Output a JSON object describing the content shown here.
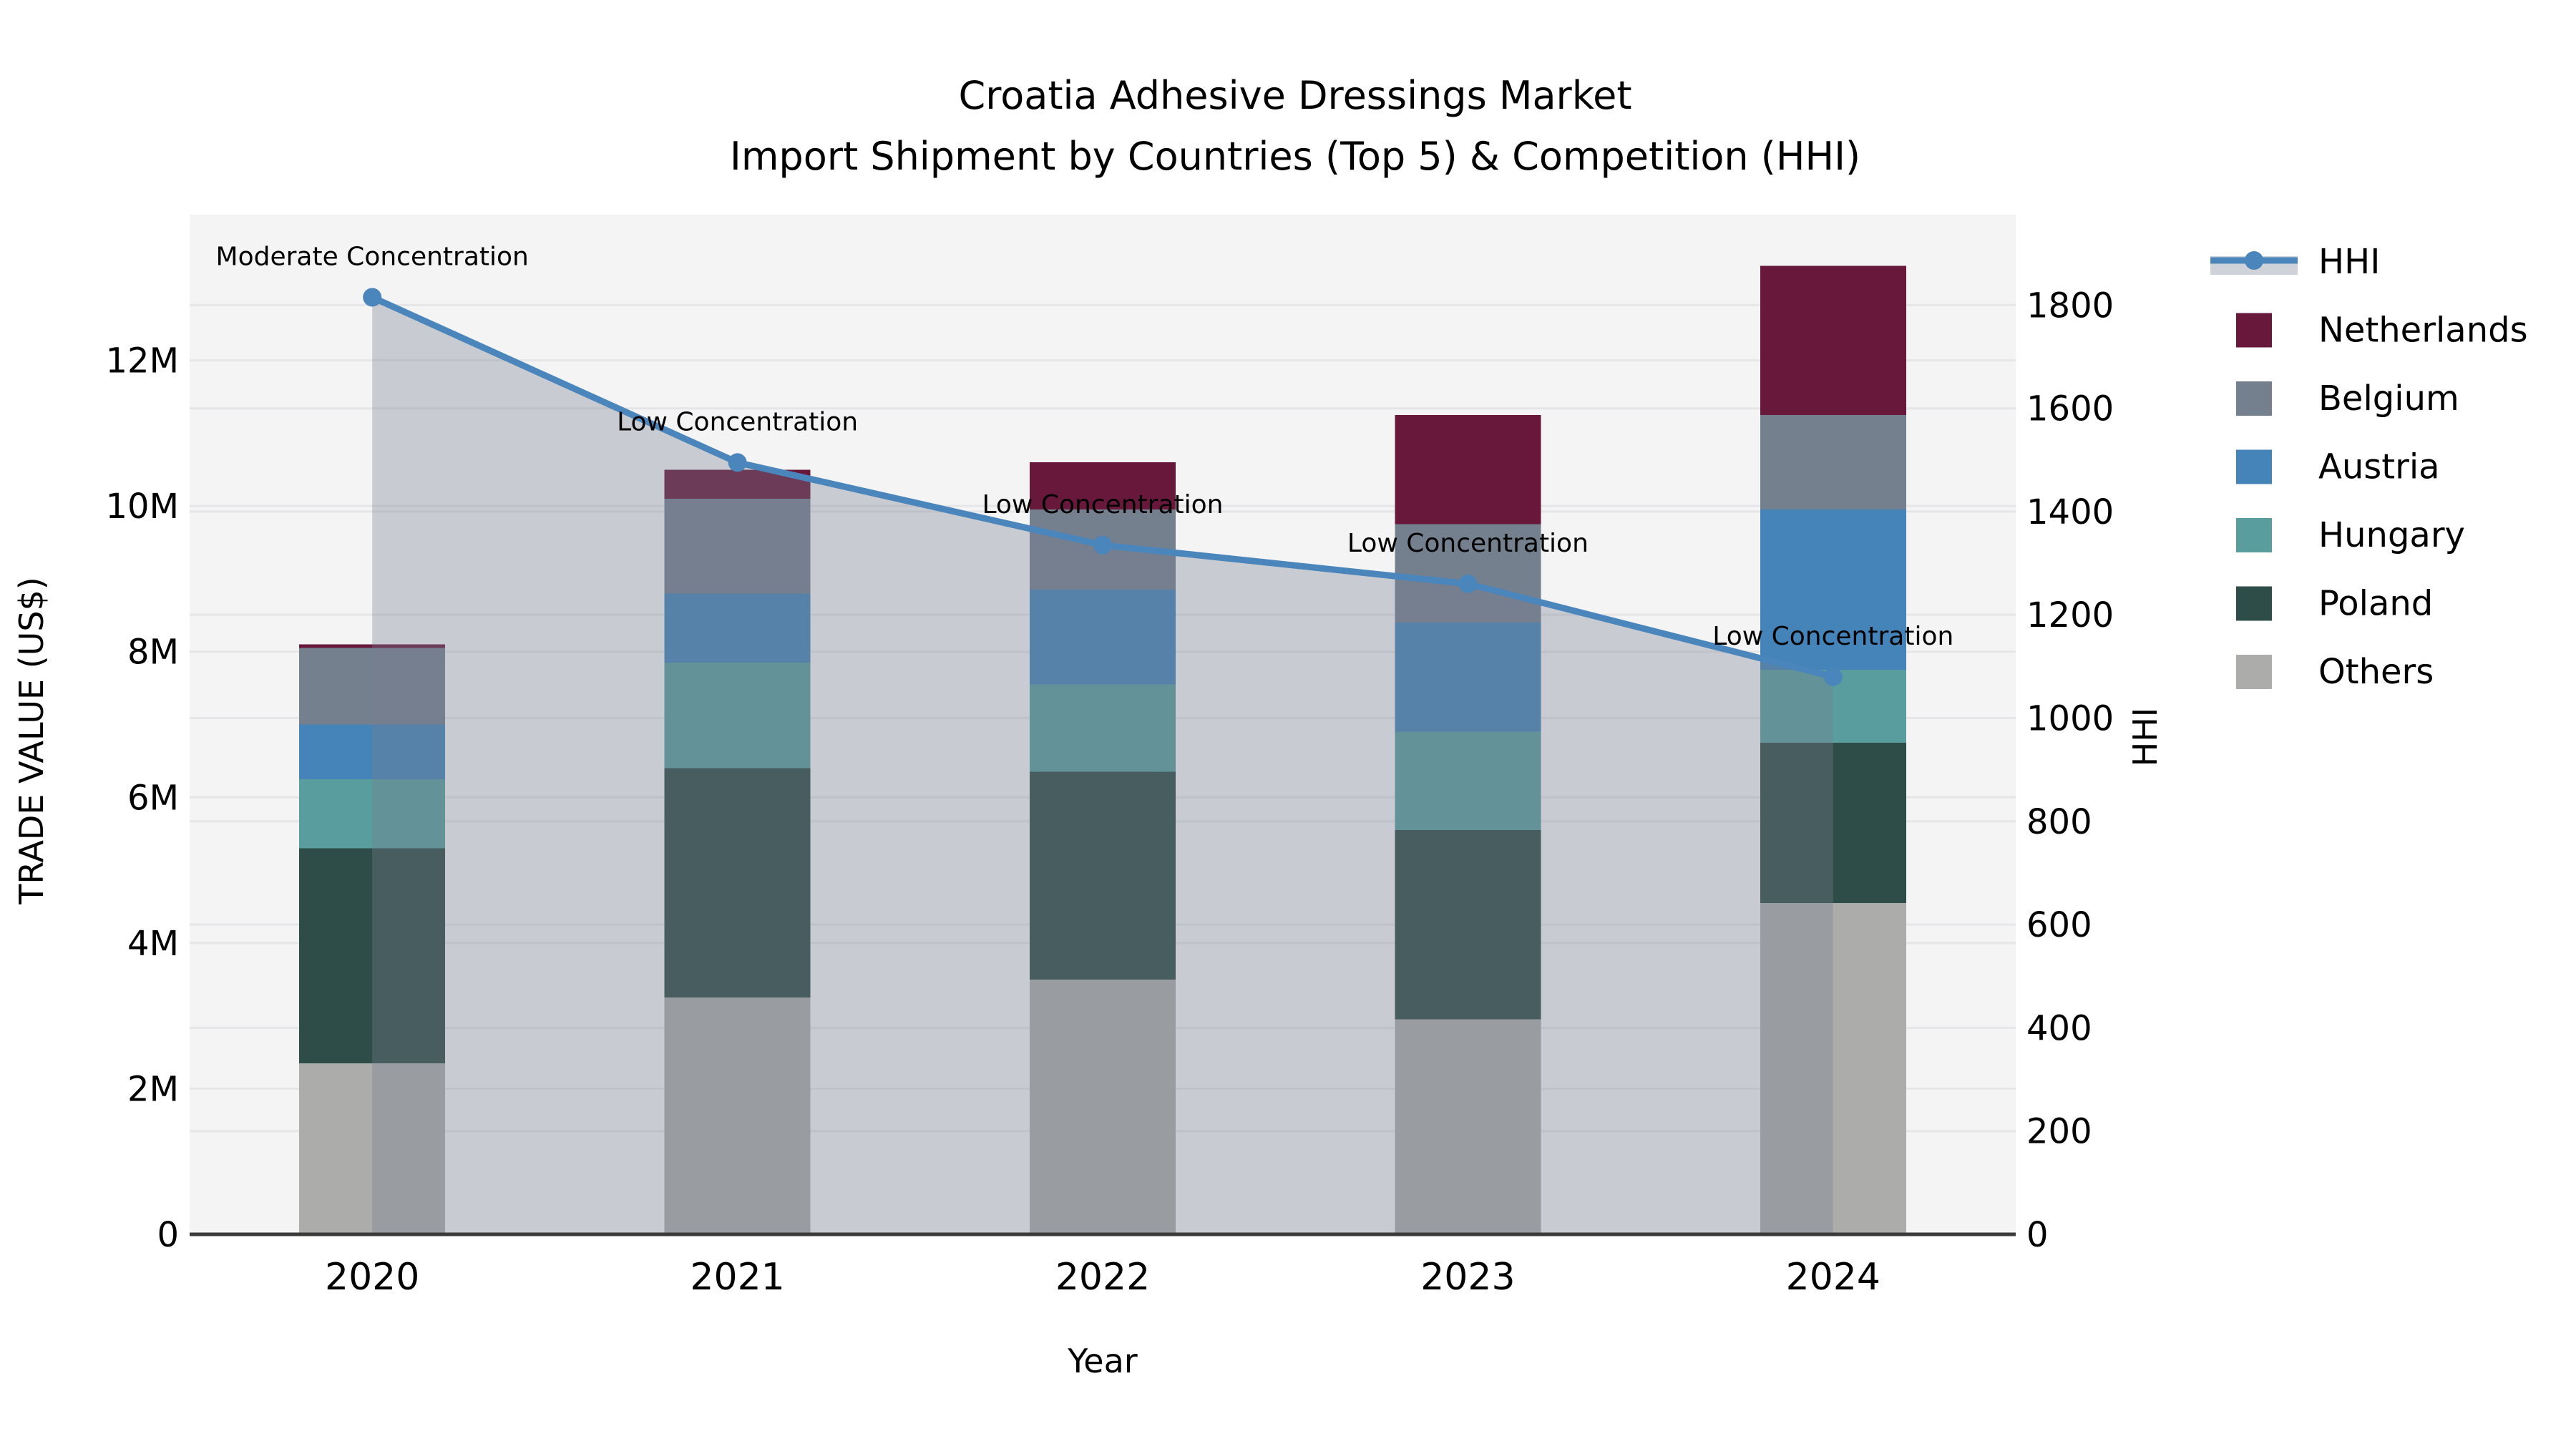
{
  "title": {
    "line1": "Croatia Adhesive Dressings Market",
    "line2": "Import Shipment by Countries (Top 5) & Competition (HHI)"
  },
  "chart_data": {
    "type": "bar",
    "subtype": "stacked-bars-with-hhi-line-and-area",
    "categories": [
      "2020",
      "2021",
      "2022",
      "2023",
      "2024"
    ],
    "value_unit": "million US$",
    "series": [
      {
        "name": "Netherlands",
        "color": "#67183b",
        "values": [
          0.05,
          0.4,
          0.65,
          1.5,
          2.05
        ]
      },
      {
        "name": "Belgium",
        "color": "#75808f",
        "values": [
          1.05,
          1.3,
          1.1,
          1.35,
          1.3
        ]
      },
      {
        "name": "Austria",
        "color": "#4584b8",
        "values": [
          0.75,
          0.95,
          1.3,
          1.5,
          2.2
        ]
      },
      {
        "name": "Hungary",
        "color": "#5a9d9f",
        "values": [
          0.95,
          1.45,
          1.2,
          1.35,
          1.0
        ]
      },
      {
        "name": "Poland",
        "color": "#2e4c48",
        "values": [
          2.95,
          3.15,
          2.85,
          2.6,
          2.2
        ]
      },
      {
        "name": "Others",
        "color": "#acacab",
        "values": [
          2.35,
          3.25,
          3.5,
          2.95,
          4.55
        ]
      }
    ],
    "stack_order_bottom_to_top": [
      "Others",
      "Poland",
      "Hungary",
      "Austria",
      "Belgium",
      "Netherlands"
    ],
    "totals": [
      8.1,
      10.5,
      10.6,
      11.25,
      13.3
    ],
    "line_series": {
      "name": "HHI",
      "color": "#4a85bb",
      "area_color": "#767d8f",
      "area_opacity": 0.35,
      "values": [
        1815,
        1495,
        1335,
        1260,
        1080
      ],
      "annotations": [
        "Moderate Concentration",
        "Low Concentration",
        "Low Concentration",
        "Low Concentration",
        "Low Concentration"
      ]
    },
    "left_axis": {
      "label": "TRADE VALUE (US$)",
      "ticks": [
        "0",
        "2M",
        "4M",
        "6M",
        "8M",
        "10M",
        "12M"
      ],
      "tick_values": [
        0,
        2,
        4,
        6,
        8,
        10,
        12
      ],
      "max": 14
    },
    "right_axis": {
      "label": "HHI",
      "ticks": [
        "0",
        "200",
        "400",
        "600",
        "800",
        "1000",
        "1200",
        "1400",
        "1600",
        "1800"
      ],
      "tick_values": [
        0,
        200,
        400,
        600,
        800,
        1000,
        1200,
        1400,
        1600,
        1800
      ],
      "max": 1975
    },
    "x_axis": {
      "label": "Year"
    },
    "grid": true,
    "legend_position": "right"
  },
  "legend": {
    "items": [
      {
        "label": "HHI",
        "type": "line",
        "color": "#4a85bb"
      },
      {
        "label": "Netherlands",
        "type": "swatch",
        "color": "#67183b"
      },
      {
        "label": "Belgium",
        "type": "swatch",
        "color": "#75808f"
      },
      {
        "label": "Austria",
        "type": "swatch",
        "color": "#4584b8"
      },
      {
        "label": "Hungary",
        "type": "swatch",
        "color": "#5a9d9f"
      },
      {
        "label": "Poland",
        "type": "swatch",
        "color": "#2e4c48"
      },
      {
        "label": "Others",
        "type": "swatch",
        "color": "#acacab"
      }
    ]
  },
  "colors": {
    "plot_background": "#f4f4f4",
    "gridline": "#e6e6e8",
    "axis_spine": "#3a3a3a",
    "text": "#000000"
  }
}
